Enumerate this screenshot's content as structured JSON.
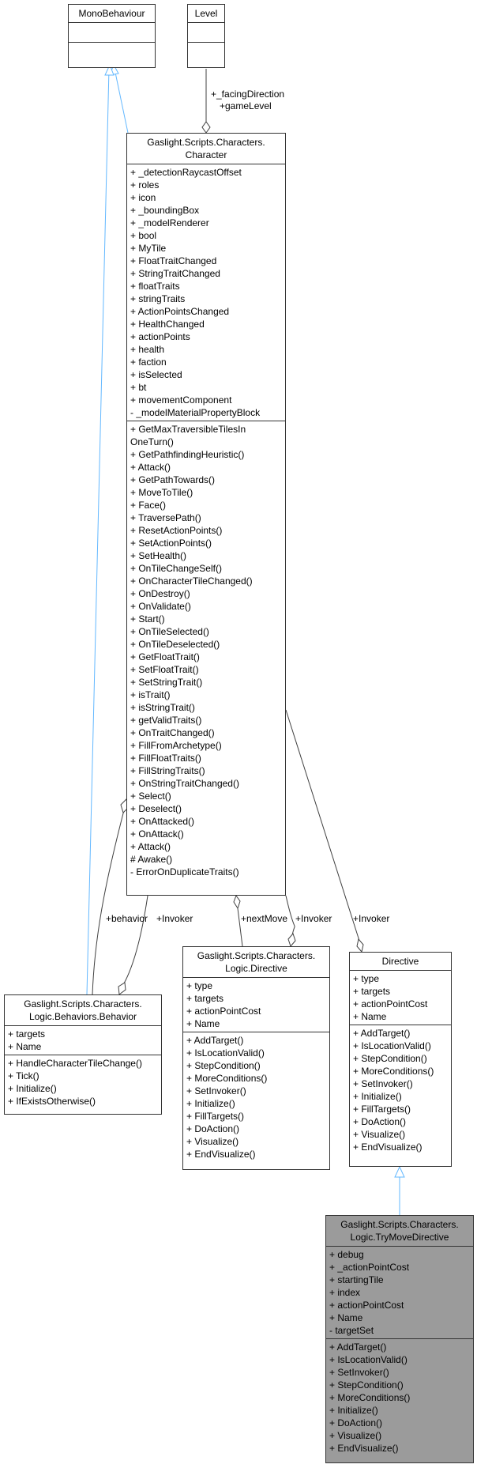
{
  "classes": {
    "mono": {
      "title": [
        "MonoBehaviour"
      ],
      "attrs": [],
      "ops": []
    },
    "level": {
      "title": [
        "Level"
      ],
      "attrs": [],
      "ops": []
    },
    "character": {
      "title": [
        "Gaslight.Scripts.Characters.",
        "Character"
      ],
      "attrs": [
        "+ _detectionRaycastOffset",
        "+ roles",
        "+ icon",
        "+ _boundingBox",
        "+ _modelRenderer",
        "+ bool",
        "+ MyTile",
        "+ FloatTraitChanged",
        "+ StringTraitChanged",
        "+ floatTraits",
        "+ stringTraits",
        "+ ActionPointsChanged",
        "+ HealthChanged",
        "+ actionPoints",
        "+ health",
        "+ faction",
        "+ isSelected",
        "+ bt",
        "+ movementComponent",
        "- _modelMaterialPropertyBlock"
      ],
      "ops": [
        "+ GetMaxTraversibleTilesIn",
        "OneTurn()",
        "+ GetPathfindingHeuristic()",
        "+ Attack()",
        "+ GetPathTowards()",
        "+ MoveToTile()",
        "+ Face()",
        "+ TraversePath()",
        "+ ResetActionPoints()",
        "+ SetActionPoints()",
        "+ SetHealth()",
        "+ OnTileChangeSelf()",
        "+ OnCharacterTileChanged()",
        "+ OnDestroy()",
        "+ OnValidate()",
        "+ Start()",
        "+ OnTileSelected()",
        "+ OnTileDeselected()",
        "+ GetFloatTrait()",
        "+ SetFloatTrait()",
        "+ SetStringTrait()",
        "+ isTrait()",
        "+ isStringTrait()",
        "+ getValidTraits()",
        "+ OnTraitChanged()",
        "+ FillFromArchetype()",
        "+ FillFloatTraits()",
        "+ FillStringTraits()",
        "+ OnStringTraitChanged()",
        "+ Select()",
        "+ Deselect()",
        "+ OnAttacked()",
        "+ OnAttack()",
        "+ Attack()",
        "# Awake()",
        "- ErrorOnDuplicateTraits()"
      ]
    },
    "behavior": {
      "title": [
        "Gaslight.Scripts.Characters.",
        "Logic.Behaviors.Behavior"
      ],
      "attrs": [
        "+ targets",
        "+ Name"
      ],
      "ops": [
        "+ HandleCharacterTileChange()",
        "+ Tick()",
        "+ Initialize()",
        "+ IfExistsOtherwise()"
      ]
    },
    "logicDirective": {
      "title": [
        "Gaslight.Scripts.Characters.",
        "Logic.Directive"
      ],
      "attrs": [
        "+ type",
        "+ targets",
        "+ actionPointCost",
        "+ Name"
      ],
      "ops": [
        "+ AddTarget()",
        "+ IsLocationValid()",
        "+ StepCondition()",
        "+ MoreConditions()",
        "+ SetInvoker()",
        "+ Initialize()",
        "+ FillTargets()",
        "+ DoAction()",
        "+ Visualize()",
        "+ EndVisualize()"
      ]
    },
    "directive": {
      "title": [
        "Directive"
      ],
      "attrs": [
        "+ type",
        "+ targets",
        "+ actionPointCost",
        "+ Name"
      ],
      "ops": [
        "+ AddTarget()",
        "+ IsLocationValid()",
        "+ StepCondition()",
        "+ MoreConditions()",
        "+ SetInvoker()",
        "+ Initialize()",
        "+ FillTargets()",
        "+ DoAction()",
        "+ Visualize()",
        "+ EndVisualize()"
      ]
    },
    "tryMove": {
      "title": [
        "Gaslight.Scripts.Characters.",
        "Logic.TryMoveDirective"
      ],
      "attrs": [
        "+ debug",
        "+ _actionPointCost",
        "+ startingTile",
        "+ index",
        "+ actionPointCost",
        "+ Name",
        "- targetSet"
      ],
      "ops": [
        "+ AddTarget()",
        "+ IsLocationValid()",
        "+ SetInvoker()",
        "+ StepCondition()",
        "+ MoreConditions()",
        "+ Initialize()",
        "+ DoAction()",
        "+ Visualize()",
        "+ EndVisualize()"
      ]
    }
  },
  "edge_labels": {
    "facingDirection": "+_facingDirection",
    "gameLevel": "+gameLevel",
    "behavior": "+behavior",
    "invokerBehavior": "+Invoker",
    "nextMove": "+nextMove",
    "invokerLogic": "+Invoker",
    "invokerDirective": "+Invoker"
  },
  "colors": {
    "inheritance": "#63b8ff",
    "association": "#404040",
    "highlight_box": "#9b9b9b"
  }
}
